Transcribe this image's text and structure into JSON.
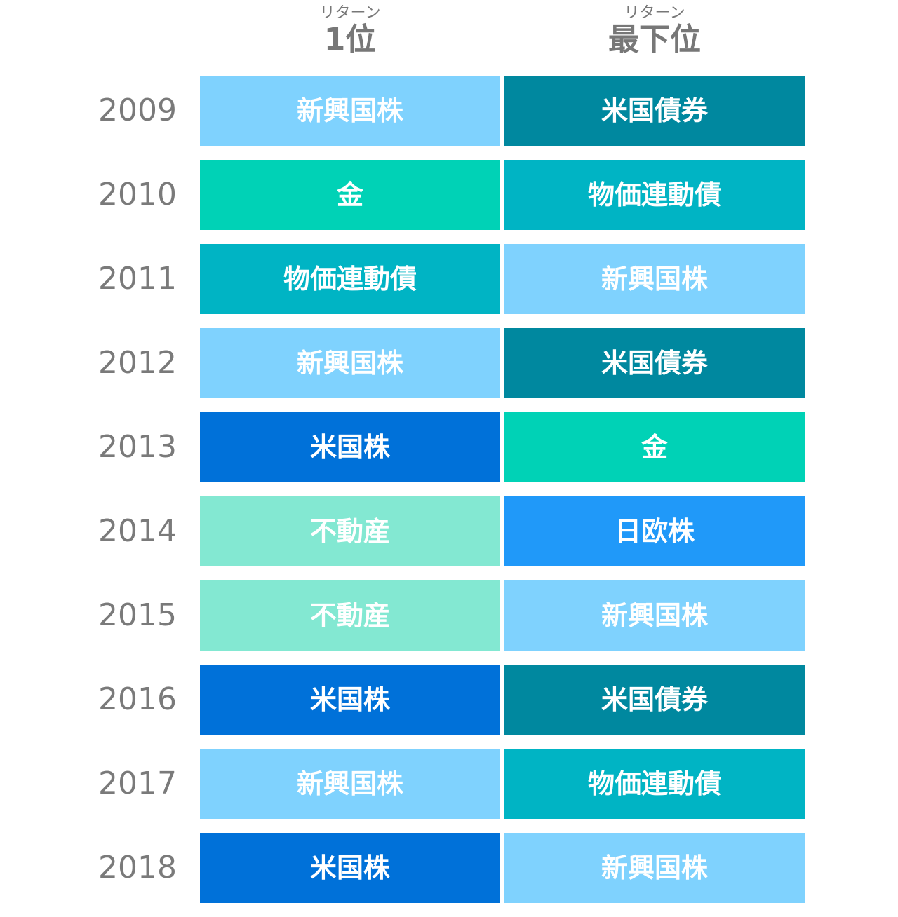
{
  "headers": {
    "top": {
      "sub": "リターン",
      "main": "1位"
    },
    "bottom": {
      "sub": "リターン",
      "main": "最下位"
    }
  },
  "colors": {
    "新興国株": "#7fd2fe",
    "米国債券": "#00889f",
    "金": "#00d2b6",
    "物価連動債": "#00b4c4",
    "米国株": "#0071d9",
    "不動産": "#83e8d2",
    "日欧株": "#2099f9"
  },
  "chart_data": {
    "type": "table",
    "columns": [
      "リターン1位",
      "リターン最下位"
    ],
    "rows": [
      {
        "year": "2009",
        "top": "新興国株",
        "bottom": "米国債券"
      },
      {
        "year": "2010",
        "top": "金",
        "bottom": "物価連動債"
      },
      {
        "year": "2011",
        "top": "物価連動債",
        "bottom": "新興国株"
      },
      {
        "year": "2012",
        "top": "新興国株",
        "bottom": "米国債券"
      },
      {
        "year": "2013",
        "top": "米国株",
        "bottom": "金"
      },
      {
        "year": "2014",
        "top": "不動産",
        "bottom": "日欧株"
      },
      {
        "year": "2015",
        "top": "不動産",
        "bottom": "新興国株"
      },
      {
        "year": "2016",
        "top": "米国株",
        "bottom": "米国債券"
      },
      {
        "year": "2017",
        "top": "新興国株",
        "bottom": "物価連動債"
      },
      {
        "year": "2018",
        "top": "米国株",
        "bottom": "新興国株"
      }
    ]
  }
}
